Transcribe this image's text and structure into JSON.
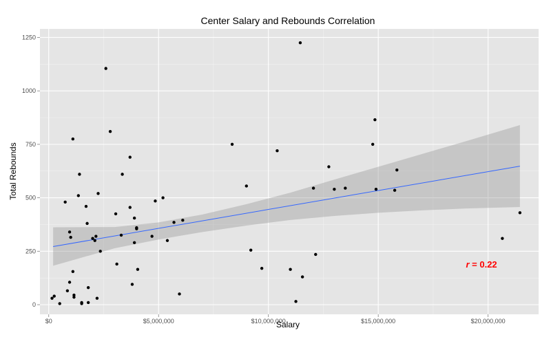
{
  "chart_data": {
    "type": "scatter",
    "title": "Center Salary and Rebounds Correlation",
    "xlabel": "Salary",
    "ylabel": "Total Rebounds",
    "xlim": [
      -400000,
      22300000
    ],
    "ylim": [
      -45,
      1290
    ],
    "x_ticks": [
      {
        "value": 0,
        "label": "$0"
      },
      {
        "value": 5000000,
        "label": "$5,000,000"
      },
      {
        "value": 10000000,
        "label": "$10,000,000"
      },
      {
        "value": 15000000,
        "label": "$15,000,000"
      },
      {
        "value": 20000000,
        "label": "$20,000,000"
      }
    ],
    "y_ticks": [
      {
        "value": 0,
        "label": "0"
      },
      {
        "value": 250,
        "label": "250"
      },
      {
        "value": 500,
        "label": "500"
      },
      {
        "value": 750,
        "label": "750"
      },
      {
        "value": 1000,
        "label": "1000"
      },
      {
        "value": 1250,
        "label": "1250"
      }
    ],
    "grid": true,
    "points": [
      [
        150000,
        30
      ],
      [
        250000,
        40
      ],
      [
        500000,
        5
      ],
      [
        750000,
        480
      ],
      [
        850000,
        65
      ],
      [
        950000,
        340
      ],
      [
        950000,
        105
      ],
      [
        1000000,
        315
      ],
      [
        1100000,
        155
      ],
      [
        1100000,
        775
      ],
      [
        1150000,
        45
      ],
      [
        1150000,
        35
      ],
      [
        1350000,
        510
      ],
      [
        1400000,
        610
      ],
      [
        1500000,
        5
      ],
      [
        1500000,
        10
      ],
      [
        1700000,
        460
      ],
      [
        1750000,
        380
      ],
      [
        1800000,
        80
      ],
      [
        1800000,
        10
      ],
      [
        2000000,
        310
      ],
      [
        2100000,
        300
      ],
      [
        2150000,
        320
      ],
      [
        2200000,
        30
      ],
      [
        2250000,
        520
      ],
      [
        2350000,
        250
      ],
      [
        2600000,
        1105
      ],
      [
        2800000,
        810
      ],
      [
        3050000,
        425
      ],
      [
        3100000,
        190
      ],
      [
        3300000,
        325
      ],
      [
        3350000,
        610
      ],
      [
        3700000,
        690
      ],
      [
        3700000,
        455
      ],
      [
        3800000,
        95
      ],
      [
        3900000,
        405
      ],
      [
        3900000,
        290
      ],
      [
        4000000,
        355
      ],
      [
        4000000,
        360
      ],
      [
        4050000,
        165
      ],
      [
        4700000,
        320
      ],
      [
        4850000,
        485
      ],
      [
        5200000,
        500
      ],
      [
        5400000,
        300
      ],
      [
        5700000,
        385
      ],
      [
        5950000,
        50
      ],
      [
        6100000,
        395
      ],
      [
        8350000,
        750
      ],
      [
        9000000,
        555
      ],
      [
        9200000,
        255
      ],
      [
        9700000,
        170
      ],
      [
        10400000,
        720
      ],
      [
        11000000,
        165
      ],
      [
        11250000,
        15
      ],
      [
        11450000,
        1225
      ],
      [
        11550000,
        130
      ],
      [
        12050000,
        545
      ],
      [
        12150000,
        235
      ],
      [
        12750000,
        645
      ],
      [
        13000000,
        540
      ],
      [
        13500000,
        545
      ],
      [
        14750000,
        750
      ],
      [
        14850000,
        865
      ],
      [
        14900000,
        540
      ],
      [
        15750000,
        535
      ],
      [
        15850000,
        630
      ],
      [
        20650000,
        310
      ],
      [
        21450000,
        430
      ]
    ],
    "fit_line": {
      "x": [
        200000,
        21450000
      ],
      "y": [
        272,
        648
      ],
      "color": "#3366ff"
    },
    "confidence_band": {
      "x": [
        200000,
        3000000,
        5000000,
        7000000,
        9000000,
        11000000,
        13000000,
        15000000,
        17000000,
        19000000,
        21450000
      ],
      "lower": [
        182,
        264,
        305,
        340,
        370,
        396,
        415,
        430,
        441,
        450,
        457
      ],
      "upper": [
        362,
        363,
        385,
        422,
        470,
        524,
        585,
        645,
        705,
        765,
        840
      ],
      "color": "#999999"
    },
    "annotation": {
      "r_symbol": "r",
      "rest": " = 0.22",
      "x": 19700000,
      "y": 190,
      "color": "#ff0000"
    },
    "colors": {
      "panel": "#e5e5e5",
      "grid_major": "#ffffff",
      "grid_minor": "#f2f2f2",
      "point": "#000000"
    }
  }
}
